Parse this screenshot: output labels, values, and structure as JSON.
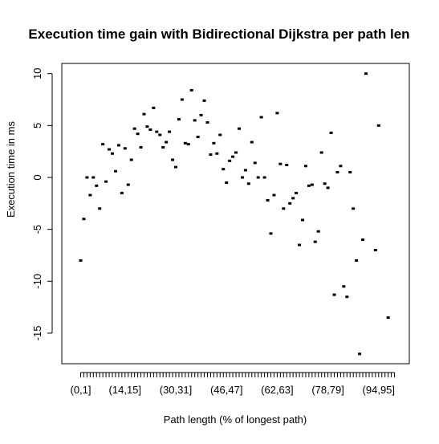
{
  "chart_data": {
    "type": "scatter",
    "title": "Execution time gain with Bidirectional Dijkstra per path len",
    "xlabel": "Path length (% of longest path)",
    "ylabel": "Execution time in ms",
    "ylim": [
      -17.5,
      11
    ],
    "y_ticks": [
      -15,
      -10,
      -5,
      0,
      5,
      10
    ],
    "x_tick_count": 100,
    "x_tick_labels": [
      {
        "index": 1,
        "label": "(0,1]"
      },
      {
        "index": 15,
        "label": "(14,15]"
      },
      {
        "index": 31,
        "label": "(30,31]"
      },
      {
        "index": 47,
        "label": "(46,47]"
      },
      {
        "index": 63,
        "label": "(62,63]"
      },
      {
        "index": 79,
        "label": "(78,79]"
      },
      {
        "index": 95,
        "label": "(94,95]"
      }
    ],
    "grid": false,
    "points": [
      {
        "x": 1,
        "y": -8.0
      },
      {
        "x": 2,
        "y": -4.0
      },
      {
        "x": 3,
        "y": 0.0
      },
      {
        "x": 4,
        "y": -1.7
      },
      {
        "x": 5,
        "y": 0.0
      },
      {
        "x": 6,
        "y": -0.8
      },
      {
        "x": 7,
        "y": -3.0
      },
      {
        "x": 8,
        "y": 3.2
      },
      {
        "x": 9,
        "y": -0.4
      },
      {
        "x": 10,
        "y": 2.7
      },
      {
        "x": 11,
        "y": 2.3
      },
      {
        "x": 12,
        "y": 0.6
      },
      {
        "x": 13,
        "y": 3.1
      },
      {
        "x": 14,
        "y": -1.5
      },
      {
        "x": 15,
        "y": 2.8
      },
      {
        "x": 16,
        "y": -0.7
      },
      {
        "x": 17,
        "y": 1.7
      },
      {
        "x": 18,
        "y": 4.7
      },
      {
        "x": 19,
        "y": 4.2
      },
      {
        "x": 20,
        "y": 2.9
      },
      {
        "x": 21,
        "y": 6.1
      },
      {
        "x": 22,
        "y": 4.9
      },
      {
        "x": 23,
        "y": 4.6
      },
      {
        "x": 24,
        "y": 6.7
      },
      {
        "x": 25,
        "y": 4.4
      },
      {
        "x": 26,
        "y": 4.1
      },
      {
        "x": 27,
        "y": 2.9
      },
      {
        "x": 28,
        "y": 3.4
      },
      {
        "x": 29,
        "y": 4.4
      },
      {
        "x": 30,
        "y": 1.7
      },
      {
        "x": 31,
        "y": 1.0
      },
      {
        "x": 32,
        "y": 5.6
      },
      {
        "x": 33,
        "y": 7.5
      },
      {
        "x": 34,
        "y": 3.3
      },
      {
        "x": 35,
        "y": 3.2
      },
      {
        "x": 36,
        "y": 8.4
      },
      {
        "x": 37,
        "y": 5.5
      },
      {
        "x": 38,
        "y": 3.9
      },
      {
        "x": 39,
        "y": 6.0
      },
      {
        "x": 40,
        "y": 7.4
      },
      {
        "x": 41,
        "y": 5.3
      },
      {
        "x": 42,
        "y": 2.2
      },
      {
        "x": 43,
        "y": 3.3
      },
      {
        "x": 44,
        "y": 2.3
      },
      {
        "x": 45,
        "y": 4.1
      },
      {
        "x": 46,
        "y": 0.8
      },
      {
        "x": 47,
        "y": -0.5
      },
      {
        "x": 48,
        "y": 1.6
      },
      {
        "x": 49,
        "y": 2.0
      },
      {
        "x": 50,
        "y": 2.4
      },
      {
        "x": 51,
        "y": 4.7
      },
      {
        "x": 52,
        "y": 0.0
      },
      {
        "x": 53,
        "y": 0.7
      },
      {
        "x": 54,
        "y": -0.6
      },
      {
        "x": 55,
        "y": 3.4
      },
      {
        "x": 56,
        "y": 1.4
      },
      {
        "x": 57,
        "y": 0.0
      },
      {
        "x": 58,
        "y": 5.8
      },
      {
        "x": 59,
        "y": 0.0
      },
      {
        "x": 60,
        "y": -2.2
      },
      {
        "x": 61,
        "y": -5.4
      },
      {
        "x": 62,
        "y": -1.7
      },
      {
        "x": 63,
        "y": 6.2
      },
      {
        "x": 64,
        "y": 1.3
      },
      {
        "x": 65,
        "y": -3.0
      },
      {
        "x": 66,
        "y": 1.2
      },
      {
        "x": 67,
        "y": -2.5
      },
      {
        "x": 68,
        "y": -2.0
      },
      {
        "x": 69,
        "y": -1.5
      },
      {
        "x": 70,
        "y": -6.5
      },
      {
        "x": 71,
        "y": -4.1
      },
      {
        "x": 72,
        "y": 1.1
      },
      {
        "x": 73,
        "y": -0.8
      },
      {
        "x": 74,
        "y": -0.7
      },
      {
        "x": 75,
        "y": -6.2
      },
      {
        "x": 76,
        "y": -5.2
      },
      {
        "x": 77,
        "y": 2.4
      },
      {
        "x": 78,
        "y": -0.6
      },
      {
        "x": 79,
        "y": -1.0
      },
      {
        "x": 80,
        "y": 4.3
      },
      {
        "x": 81,
        "y": -11.3
      },
      {
        "x": 82,
        "y": 0.5
      },
      {
        "x": 83,
        "y": 1.1
      },
      {
        "x": 84,
        "y": -10.5
      },
      {
        "x": 85,
        "y": -11.5
      },
      {
        "x": 86,
        "y": 0.5
      },
      {
        "x": 87,
        "y": -3.0
      },
      {
        "x": 88,
        "y": -8.0
      },
      {
        "x": 89,
        "y": -17.0
      },
      {
        "x": 90,
        "y": -6.0
      },
      {
        "x": 91,
        "y": 10.0
      },
      {
        "x": 94,
        "y": -7.0
      },
      {
        "x": 95,
        "y": 5.0
      },
      {
        "x": 98,
        "y": -13.5
      }
    ]
  }
}
